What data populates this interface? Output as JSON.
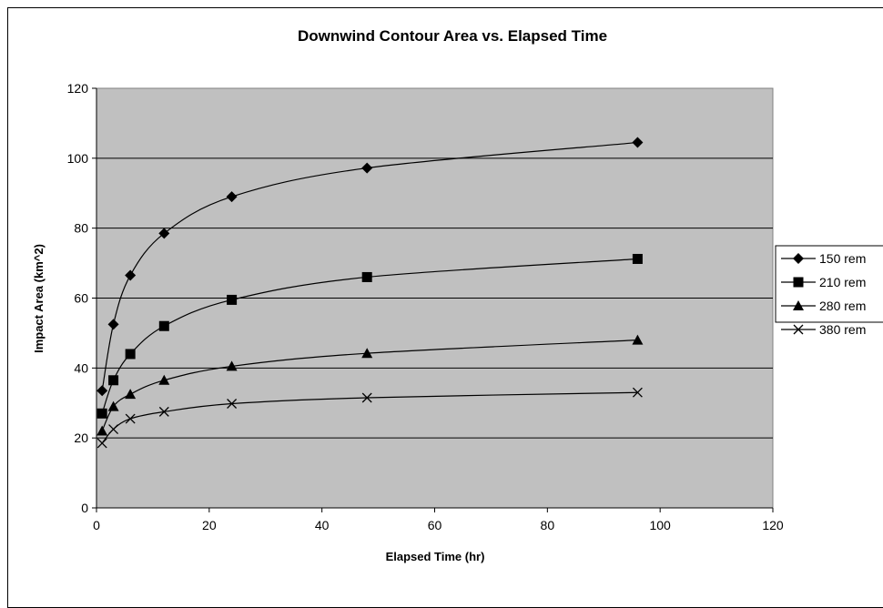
{
  "chart_data": {
    "type": "scatter",
    "title": "Downwind Contour Area vs. Elapsed Time",
    "xlabel": "Elapsed Time (hr)",
    "ylabel": "Impact Area (km^2)",
    "xlim": [
      0,
      120
    ],
    "ylim": [
      0,
      120
    ],
    "xticks": [
      0,
      20,
      40,
      60,
      80,
      100,
      120
    ],
    "yticks": [
      0,
      20,
      40,
      60,
      80,
      100,
      120
    ],
    "grid": "horizontal",
    "background": "#c0c0c0",
    "legend_position": "right",
    "x": [
      1,
      3,
      6,
      12,
      24,
      48,
      96
    ],
    "series": [
      {
        "name": "150 rem",
        "marker": "diamond",
        "values": [
          33.5,
          52.5,
          66.5,
          78.5,
          89,
          97.2,
          104.5
        ]
      },
      {
        "name": "210 rem",
        "marker": "square",
        "values": [
          27,
          36.5,
          44,
          52,
          59.5,
          66,
          71.2
        ]
      },
      {
        "name": "280 rem",
        "marker": "triangle",
        "values": [
          22,
          29,
          32.5,
          36.5,
          40.5,
          44.2,
          48
        ]
      },
      {
        "name": "380 rem",
        "marker": "x",
        "values": [
          18.5,
          22.5,
          25.5,
          27.5,
          29.8,
          31.5,
          33
        ]
      }
    ]
  }
}
